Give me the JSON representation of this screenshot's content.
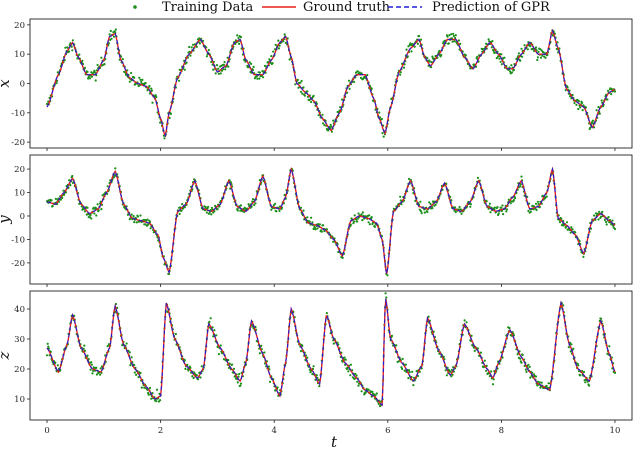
{
  "legend": {
    "training": "Training Data",
    "truth": "Ground truth",
    "prediction": "Prediction of GPR"
  },
  "colors": {
    "training": "#1a8f1a",
    "truth": "#e8201a",
    "prediction": "#1f1fd6",
    "frame": "#222222"
  },
  "chart_data": [
    {
      "type": "line",
      "ylabel": "x",
      "xlabel": "",
      "xlim": [
        -0.3,
        10.3
      ],
      "ylim": [
        -22,
        22
      ],
      "xticks": [
        0,
        2,
        4,
        6,
        8,
        10
      ],
      "yticks": [
        -20,
        -10,
        0,
        10,
        20
      ],
      "series_names": [
        "Training Data",
        "Ground truth",
        "Prediction of GPR"
      ],
      "x": [
        0,
        0.2,
        0.35,
        0.45,
        0.55,
        0.7,
        0.85,
        1.0,
        1.1,
        1.2,
        1.3,
        1.45,
        1.6,
        1.75,
        1.9,
        2.0,
        2.08,
        2.15,
        2.3,
        2.5,
        2.7,
        2.85,
        3.0,
        3.15,
        3.3,
        3.4,
        3.5,
        3.65,
        3.8,
        3.95,
        4.1,
        4.2,
        4.3,
        4.4,
        4.55,
        4.7,
        4.85,
        5.0,
        5.15,
        5.3,
        5.45,
        5.6,
        5.75,
        5.85,
        5.95,
        6.05,
        6.2,
        6.4,
        6.55,
        6.65,
        6.75,
        6.9,
        7.05,
        7.2,
        7.35,
        7.5,
        7.65,
        7.8,
        7.95,
        8.1,
        8.2,
        8.35,
        8.5,
        8.65,
        8.8,
        8.9,
        9.0,
        9.15,
        9.3,
        9.45,
        9.6,
        9.75,
        9.9,
        10.0
      ],
      "values": [
        -8,
        3,
        11,
        14,
        9,
        3,
        3,
        8,
        16,
        17,
        8,
        2,
        0,
        -1,
        -5,
        -12,
        -18,
        -10,
        2,
        10,
        15,
        10,
        4,
        6,
        14,
        15,
        8,
        3,
        3,
        8,
        14,
        16,
        9,
        0,
        -3,
        -6,
        -12,
        -16,
        -10,
        -1,
        3,
        3,
        -5,
        -12,
        -17,
        -8,
        4,
        12,
        15,
        9,
        6,
        10,
        15,
        15,
        9,
        5,
        10,
        14,
        10,
        5,
        5,
        10,
        14,
        10,
        10,
        18,
        12,
        -2,
        -6,
        -8,
        -15,
        -8,
        -3,
        -2
      ]
    },
    {
      "type": "line",
      "ylabel": "y",
      "xlabel": "",
      "xlim": [
        -0.3,
        10.3
      ],
      "ylim": [
        -29,
        26
      ],
      "xticks": [
        0,
        2,
        4,
        6,
        8,
        10
      ],
      "yticks": [
        -20,
        -10,
        0,
        10,
        20
      ],
      "series_names": [
        "Training Data",
        "Ground truth",
        "Prediction of GPR"
      ],
      "x": [
        0,
        0.15,
        0.3,
        0.45,
        0.6,
        0.75,
        0.9,
        1.05,
        1.2,
        1.35,
        1.5,
        1.65,
        1.8,
        1.95,
        2.05,
        2.15,
        2.3,
        2.45,
        2.6,
        2.75,
        2.9,
        3.05,
        3.2,
        3.35,
        3.5,
        3.65,
        3.8,
        3.95,
        4.1,
        4.2,
        4.3,
        4.45,
        4.6,
        4.75,
        4.9,
        5.05,
        5.2,
        5.35,
        5.5,
        5.65,
        5.8,
        5.9,
        5.98,
        6.1,
        6.25,
        6.4,
        6.55,
        6.7,
        6.85,
        7.0,
        7.15,
        7.3,
        7.45,
        7.6,
        7.75,
        7.9,
        8.05,
        8.2,
        8.35,
        8.5,
        8.65,
        8.8,
        8.9,
        9.0,
        9.15,
        9.3,
        9.45,
        9.6,
        9.75,
        9.9,
        10.0
      ],
      "values": [
        6,
        5,
        10,
        16,
        5,
        1,
        3,
        10,
        19,
        5,
        -1,
        -2,
        -3,
        -8,
        -18,
        -24,
        2,
        5,
        15,
        3,
        2,
        5,
        15,
        4,
        2,
        6,
        17,
        4,
        3,
        8,
        20,
        3,
        -3,
        -4,
        -6,
        -10,
        -17,
        -2,
        0,
        -1,
        -3,
        -10,
        -25,
        2,
        6,
        15,
        4,
        3,
        6,
        14,
        3,
        2,
        6,
        15,
        4,
        2,
        3,
        8,
        15,
        3,
        4,
        10,
        20,
        -1,
        -4,
        -8,
        -16,
        -2,
        1,
        -2,
        -4
      ]
    },
    {
      "type": "line",
      "ylabel": "z",
      "xlabel": "t",
      "xlim": [
        -0.3,
        10.3
      ],
      "ylim": [
        3,
        46
      ],
      "xticks": [
        0,
        2,
        4,
        6,
        8,
        10
      ],
      "yticks": [
        10,
        20,
        30,
        40
      ],
      "series_names": [
        "Training Data",
        "Ground truth",
        "Prediction of GPR"
      ],
      "x": [
        0,
        0.2,
        0.35,
        0.45,
        0.6,
        0.8,
        0.95,
        1.1,
        1.2,
        1.35,
        1.55,
        1.75,
        1.9,
        2.0,
        2.1,
        2.25,
        2.45,
        2.65,
        2.75,
        2.85,
        3.05,
        3.25,
        3.4,
        3.5,
        3.6,
        3.8,
        3.95,
        4.1,
        4.2,
        4.3,
        4.45,
        4.65,
        4.8,
        4.92,
        5.05,
        5.25,
        5.45,
        5.6,
        5.75,
        5.9,
        5.96,
        6.05,
        6.25,
        6.45,
        6.6,
        6.7,
        6.9,
        7.1,
        7.2,
        7.35,
        7.55,
        7.75,
        7.85,
        7.95,
        8.15,
        8.35,
        8.5,
        8.65,
        8.85,
        9.05,
        9.2,
        9.35,
        9.55,
        9.75,
        9.9,
        10.0
      ],
      "values": [
        27,
        19,
        28,
        38,
        27,
        20,
        19,
        27,
        41,
        28,
        20,
        14,
        10,
        11,
        42,
        30,
        21,
        17,
        20,
        35,
        27,
        20,
        16,
        22,
        36,
        25,
        17,
        11,
        22,
        40,
        28,
        20,
        15,
        38,
        30,
        22,
        17,
        13,
        11,
        8,
        44,
        30,
        22,
        16,
        21,
        37,
        26,
        18,
        21,
        35,
        27,
        20,
        17,
        22,
        33,
        24,
        19,
        15,
        13,
        42,
        28,
        20,
        16,
        36,
        25,
        19
      ]
    }
  ]
}
